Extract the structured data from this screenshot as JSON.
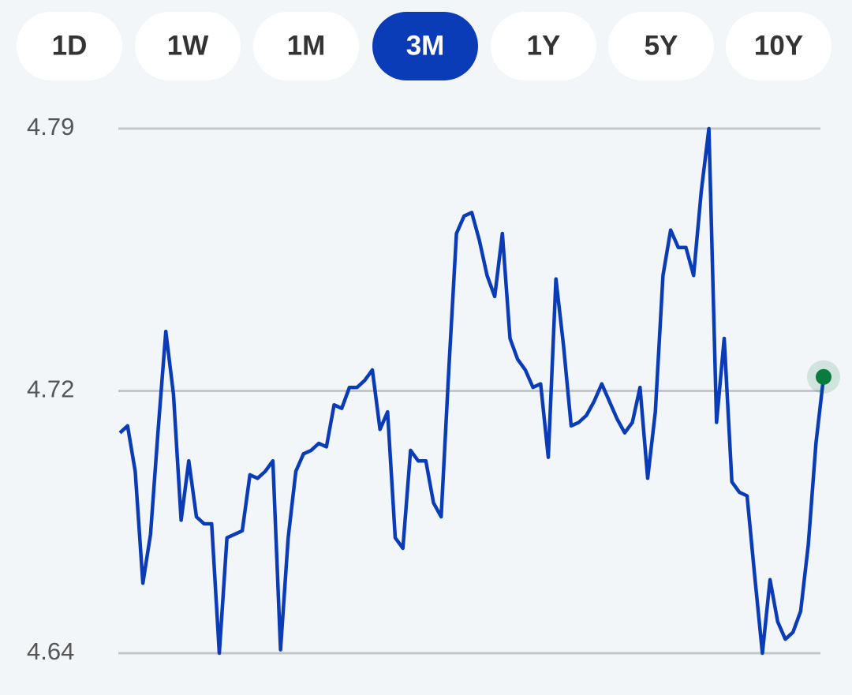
{
  "tabs": [
    "1D",
    "1W",
    "1M",
    "3M",
    "1Y",
    "5Y",
    "10Y"
  ],
  "selected_tab": 3,
  "chart_data": {
    "type": "line",
    "color": "#0a3cb8",
    "marker_color": "#0b7a3e",
    "values": [
      4.703,
      4.705,
      4.692,
      4.66,
      4.674,
      4.704,
      4.732,
      4.714,
      4.678,
      4.695,
      4.679,
      4.677,
      4.677,
      4.64,
      4.673,
      4.674,
      4.675,
      4.691,
      4.69,
      4.692,
      4.695,
      4.641,
      4.673,
      4.692,
      4.697,
      4.698,
      4.7,
      4.699,
      4.711,
      4.71,
      4.716,
      4.716,
      4.718,
      4.721,
      4.704,
      4.709,
      4.673,
      4.67,
      4.698,
      4.695,
      4.695,
      4.683,
      4.679,
      4.721,
      4.76,
      4.765,
      4.766,
      4.758,
      4.748,
      4.742,
      4.76,
      4.73,
      4.724,
      4.721,
      4.716,
      4.717,
      4.696,
      4.747,
      4.728,
      4.705,
      4.706,
      4.708,
      4.712,
      4.717,
      4.712,
      4.707,
      4.703,
      4.706,
      4.716,
      4.69,
      4.709,
      4.748,
      4.761,
      4.756,
      4.756,
      4.748,
      4.772,
      4.79,
      4.706,
      4.73,
      4.689,
      4.686,
      4.685,
      4.662,
      4.64,
      4.661,
      4.649,
      4.644,
      4.646,
      4.652,
      4.671,
      4.7,
      4.719
    ],
    "ylim": [
      4.64,
      4.79
    ],
    "yticks": [
      4.64,
      {
        "value": 4.715,
        "label": "4.72"
      },
      4.79
    ],
    "grid": true
  }
}
